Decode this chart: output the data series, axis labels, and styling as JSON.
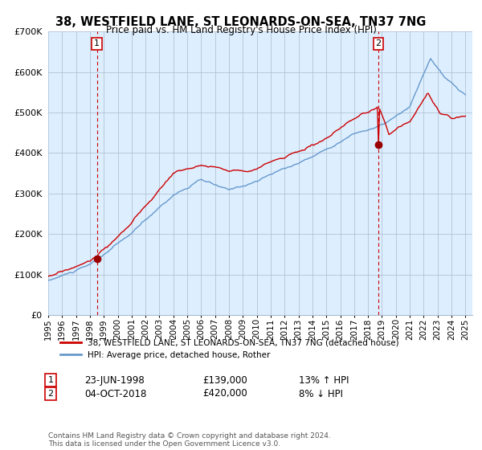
{
  "title": "38, WESTFIELD LANE, ST LEONARDS-ON-SEA, TN37 7NG",
  "subtitle": "Price paid vs. HM Land Registry's House Price Index (HPI)",
  "line1_label": "38, WESTFIELD LANE, ST LEONARDS-ON-SEA, TN37 7NG (detached house)",
  "line2_label": "HPI: Average price, detached house, Rother",
  "line1_color": "#cc0000",
  "line2_color": "#6699cc",
  "sale1_date": "23-JUN-1998",
  "sale1_price": "£139,000",
  "sale1_hpi": "13% ↑ HPI",
  "sale2_date": "04-OCT-2018",
  "sale2_price": "£420,000",
  "sale2_hpi": "8% ↓ HPI",
  "footnote": "Contains HM Land Registry data © Crown copyright and database right 2024.\nThis data is licensed under the Open Government Licence v3.0.",
  "ylim": [
    0,
    700000
  ],
  "background_color": "#ffffff",
  "plot_bg_color": "#ddeeff",
  "grid_color": "#aabbcc"
}
